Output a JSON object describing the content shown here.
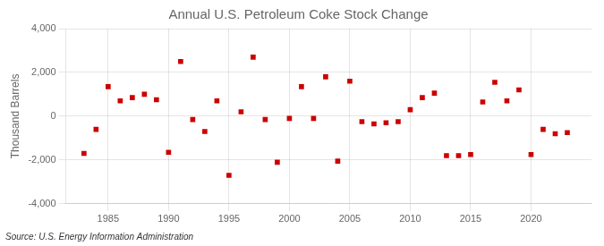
{
  "chart_data": {
    "type": "scatter",
    "title": "Annual U.S. Petroleum Coke Stock Change",
    "y_label": "Thousand Barrels",
    "annotation": "Source: U.S. Energy Information Administration",
    "x": [
      1983,
      1984,
      1985,
      1986,
      1987,
      1988,
      1989,
      1990,
      1991,
      1992,
      1993,
      1994,
      1995,
      1996,
      1997,
      1998,
      1999,
      2000,
      2001,
      2002,
      2003,
      2004,
      2005,
      2006,
      2007,
      2008,
      2009,
      2010,
      2011,
      2012,
      2013,
      2014,
      2015,
      2016,
      2017,
      2018,
      2019,
      2020,
      2021,
      2022,
      2023
    ],
    "values": [
      -1700,
      -600,
      1350,
      700,
      850,
      1000,
      750,
      -1650,
      2500,
      -150,
      -700,
      700,
      -2700,
      200,
      2700,
      -150,
      -2100,
      -100,
      1350,
      -100,
      1800,
      -2050,
      1600,
      -250,
      -350,
      -300,
      -250,
      300,
      850,
      1050,
      -1800,
      -1800,
      -1750,
      650,
      1550,
      700,
      1200,
      -1750,
      -600,
      -800,
      -750
    ],
    "color": "#cc0000",
    "marker": "square",
    "xlim": [
      1981.5,
      2025
    ],
    "xticks": [
      1985,
      1990,
      1995,
      2000,
      2005,
      2010,
      2015,
      2020
    ],
    "ylim": [
      -4000,
      4000
    ],
    "yticks": [
      {
        "value": -4000,
        "label": "-4,000"
      },
      {
        "value": -2000,
        "label": "-2,000"
      },
      0,
      {
        "value": 2000,
        "label": "2,000"
      },
      {
        "value": 4000,
        "label": "4,000"
      }
    ],
    "grid": true
  }
}
